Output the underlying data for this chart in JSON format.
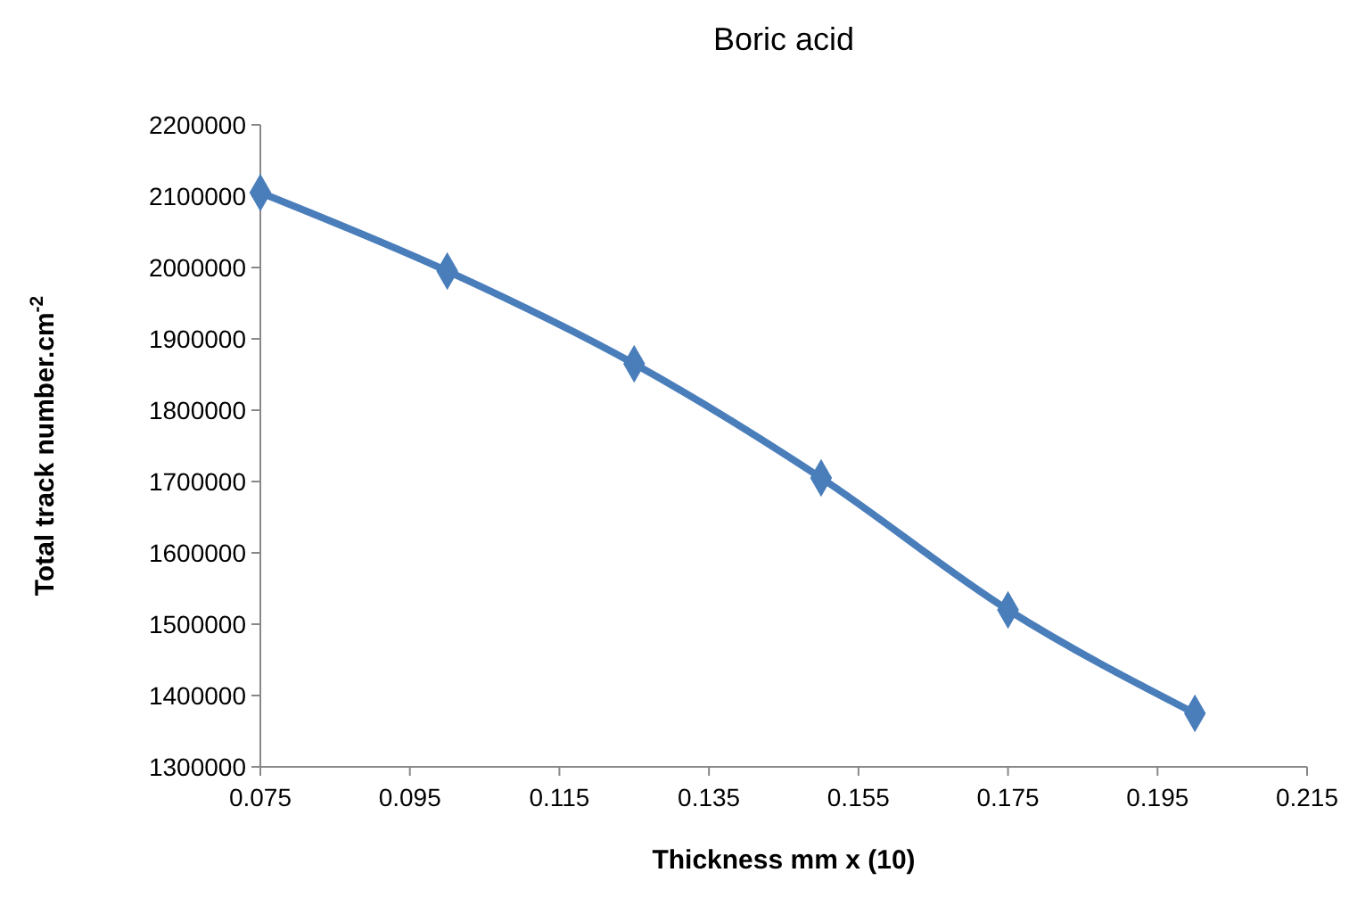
{
  "chart_data": {
    "type": "line",
    "title": "Boric acid",
    "xlabel": "Thickness mm x (10)",
    "ylabel": "Total track number.cm$^{-2}$",
    "x": [
      0.075,
      0.1,
      0.125,
      0.15,
      0.175,
      0.2
    ],
    "series": [
      {
        "color": "#4a7ebb",
        "values": [
          2105000,
          1995000,
          1865000,
          1705000,
          1520000,
          1375000
        ]
      }
    ],
    "xlim": [
      0.075,
      0.215
    ],
    "xticks": [
      {
        "value": 0.075,
        "label": "0.075"
      },
      {
        "value": 0.095,
        "label": "0.095"
      },
      {
        "value": 0.115,
        "label": "0.115"
      },
      {
        "value": 0.135,
        "label": "0.135"
      },
      {
        "value": 0.155,
        "label": "0.155"
      },
      {
        "value": 0.175,
        "label": "0.175"
      },
      {
        "value": 0.195,
        "label": "0.195"
      },
      {
        "value": 0.215,
        "label": "0.215"
      }
    ],
    "ylim": [
      1300000,
      2200000
    ],
    "yticks": [
      1300000,
      1400000,
      1500000,
      1600000,
      1700000,
      1800000,
      1900000,
      2000000,
      2100000,
      2200000
    ],
    "grid": false,
    "marker": "diamond",
    "line_style": "solid"
  }
}
